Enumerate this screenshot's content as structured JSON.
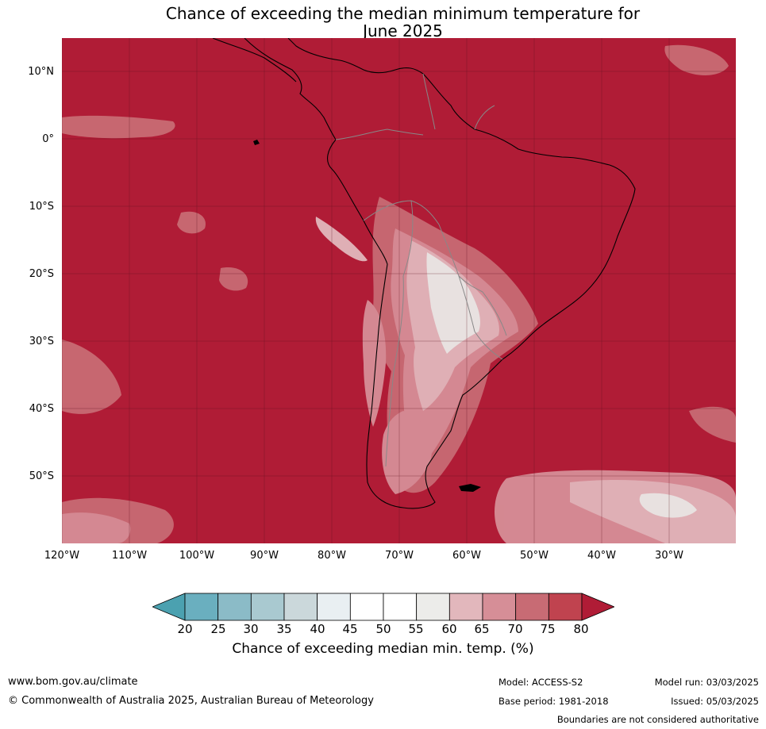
{
  "title": {
    "line1": "Chance of exceeding the median minimum temperature for",
    "line2": "June 2025"
  },
  "lat_ticks": [
    "10°N",
    "0°",
    "10°S",
    "20°S",
    "30°S",
    "40°S",
    "50°S"
  ],
  "lon_ticks": [
    "120°W",
    "110°W",
    "100°W",
    "90°W",
    "80°W",
    "70°W",
    "60°W",
    "50°W",
    "40°W",
    "30°W"
  ],
  "colorbar": {
    "labels": [
      "20",
      "25",
      "30",
      "35",
      "40",
      "45",
      "50",
      "55",
      "60",
      "65",
      "70",
      "75",
      "80"
    ],
    "colors": [
      "#4ba1b0",
      "#6aafbf",
      "#8bbbc7",
      "#a9c9d0",
      "#cbd8db",
      "#e9eff2",
      "#ffffff",
      "#ffffff",
      "#ececea",
      "#e2b7bc",
      "#d68e97",
      "#c86b74",
      "#c0434f",
      "#b01c36"
    ],
    "title": "Chance of exceeding median min. temp. (%)"
  },
  "colors": {
    "ocean_high": "#b01c36",
    "border": "#888888",
    "coast": "#000000"
  },
  "footer": {
    "website": "www.bom.gov.au/climate",
    "copyright": "© Commonwealth of Australia 2025, Australian Bureau of Meteorology",
    "model": "Model: ACCESS-S2",
    "base_period": "Base period: 1981-2018",
    "model_run": "Model run: 03/03/2025",
    "issued": "Issued: 05/03/2025",
    "disclaimer": "Boundaries are not considered authoritative"
  }
}
